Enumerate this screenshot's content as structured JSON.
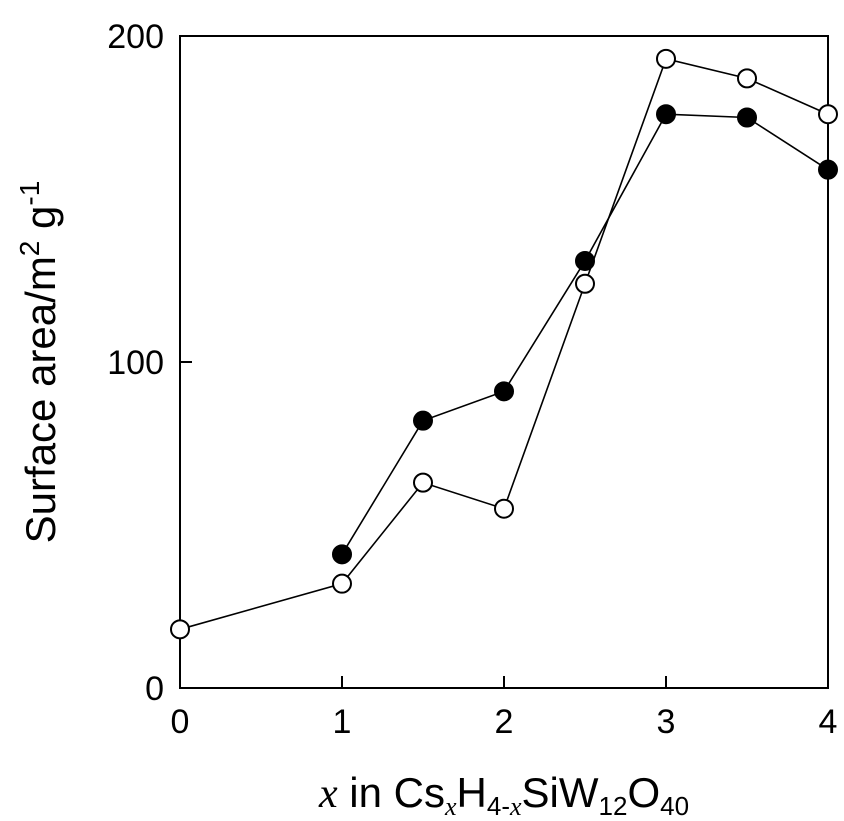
{
  "chart_data": {
    "type": "scatter",
    "title": "",
    "xlabel": {
      "var": "x",
      "text": " in Cs",
      "sub1": "x",
      "mid": "H",
      "sub2": "4-",
      "sub3": "x",
      "tail": "SiW",
      "sub4": "12",
      "tail2": "O",
      "sub5": "40"
    },
    "ylabel": {
      "main": "Surface area/m",
      "sup1": "2",
      "mid": " g",
      "sup2": "-1"
    },
    "xlim": [
      0,
      4
    ],
    "ylim": [
      0,
      200
    ],
    "xticks": [
      "0",
      "1",
      "2",
      "3",
      "4"
    ],
    "yticks": [
      "0",
      "100",
      "200"
    ],
    "grid": false,
    "series": [
      {
        "marker": "filled-circle",
        "color": "#000000",
        "x": [
          1,
          1.5,
          2,
          2.5,
          3,
          3.5,
          4
        ],
        "y": [
          41,
          82,
          91,
          131,
          176,
          175,
          159
        ]
      },
      {
        "marker": "open-circle",
        "color": "#000000",
        "x": [
          0,
          1,
          1.5,
          2,
          2.5,
          3,
          3.5,
          4
        ],
        "y": [
          18,
          32,
          63,
          55,
          124,
          193,
          187,
          176
        ]
      }
    ]
  }
}
